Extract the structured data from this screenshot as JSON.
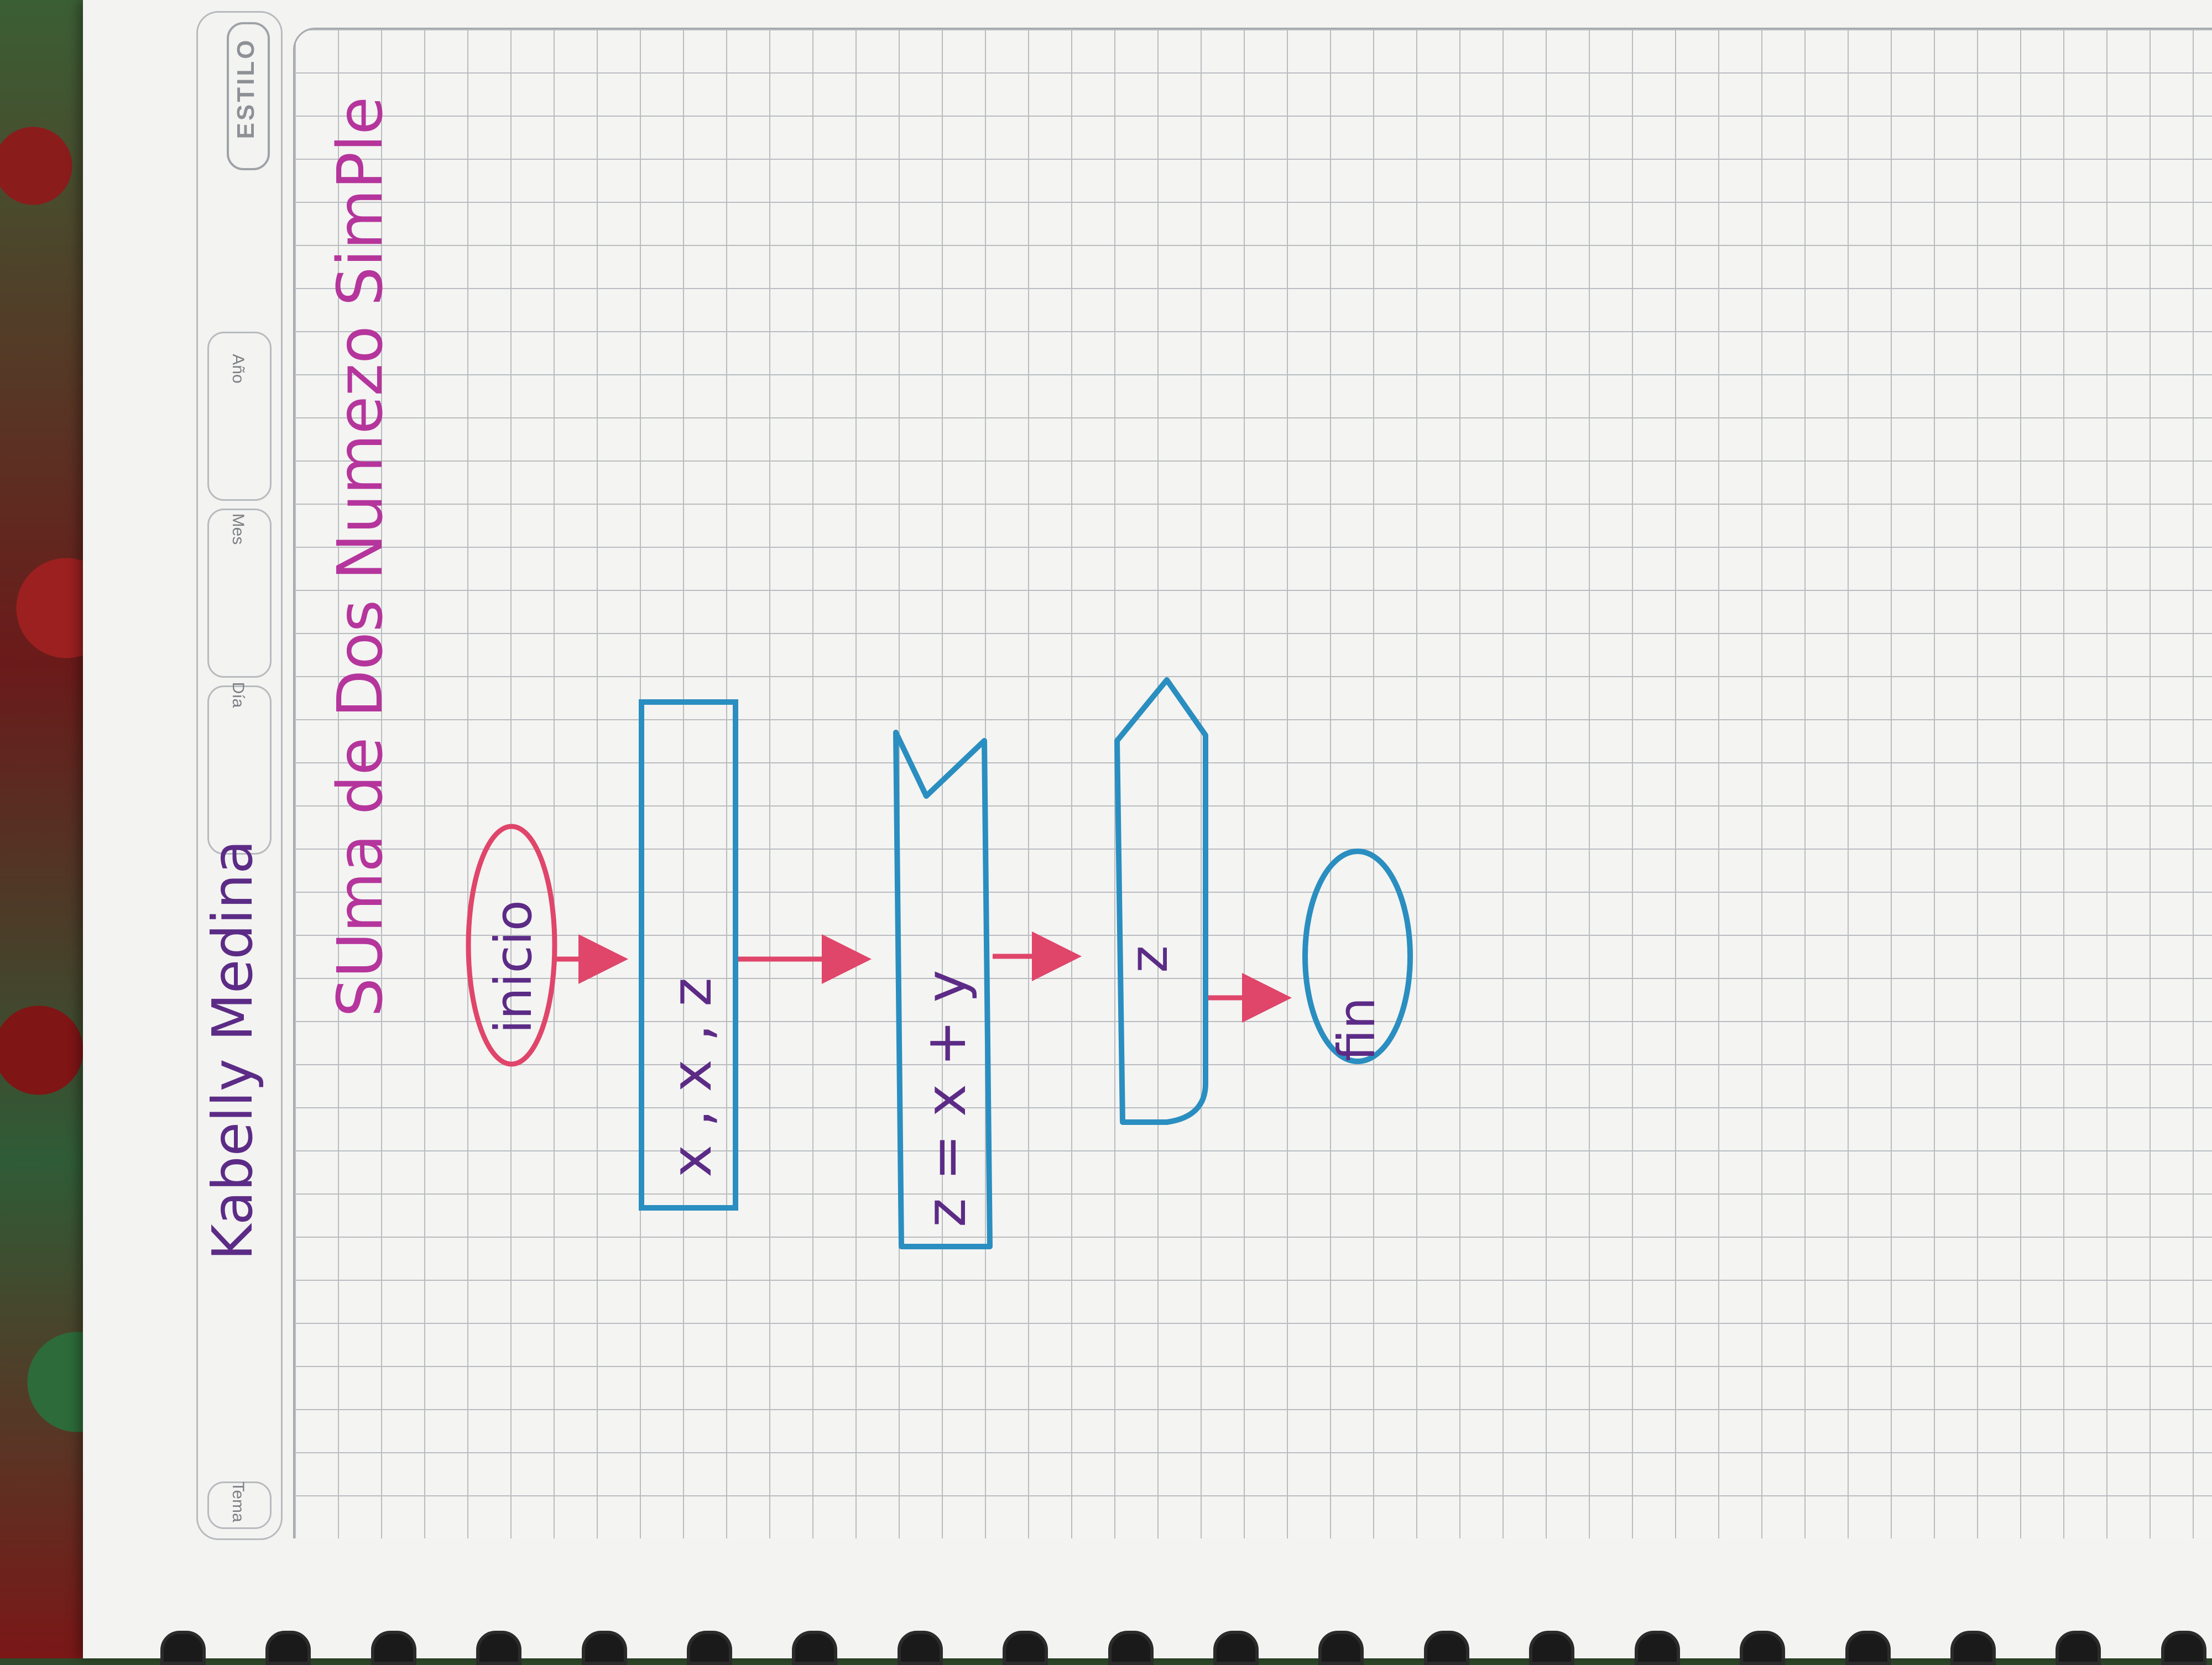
{
  "paper": {
    "header_fields": [
      "Tema",
      "Día",
      "Mes",
      "Año"
    ],
    "brand": "ESTILO"
  },
  "handwriting": {
    "author": "Kabelly Medina",
    "title": "SUma de Dos Numezo SimPle"
  },
  "flowchart": {
    "nodes": [
      {
        "id": "start",
        "shape": "oval",
        "label": "inicio"
      },
      {
        "id": "vars",
        "shape": "rectangle",
        "label": "x , x , z"
      },
      {
        "id": "input",
        "shape": "manual-input",
        "label": "z = x + y"
      },
      {
        "id": "output",
        "shape": "display",
        "label": "z"
      },
      {
        "id": "end",
        "shape": "oval",
        "label": "fin"
      }
    ],
    "edges": [
      [
        "start",
        "vars"
      ],
      [
        "vars",
        "input"
      ],
      [
        "input",
        "output"
      ],
      [
        "output",
        "end"
      ]
    ]
  },
  "colors": {
    "ink_blue": "#2a8ec0",
    "ink_red": "#e0456a",
    "ink_purple": "#5c2b86",
    "ink_magenta": "#b5359c"
  }
}
